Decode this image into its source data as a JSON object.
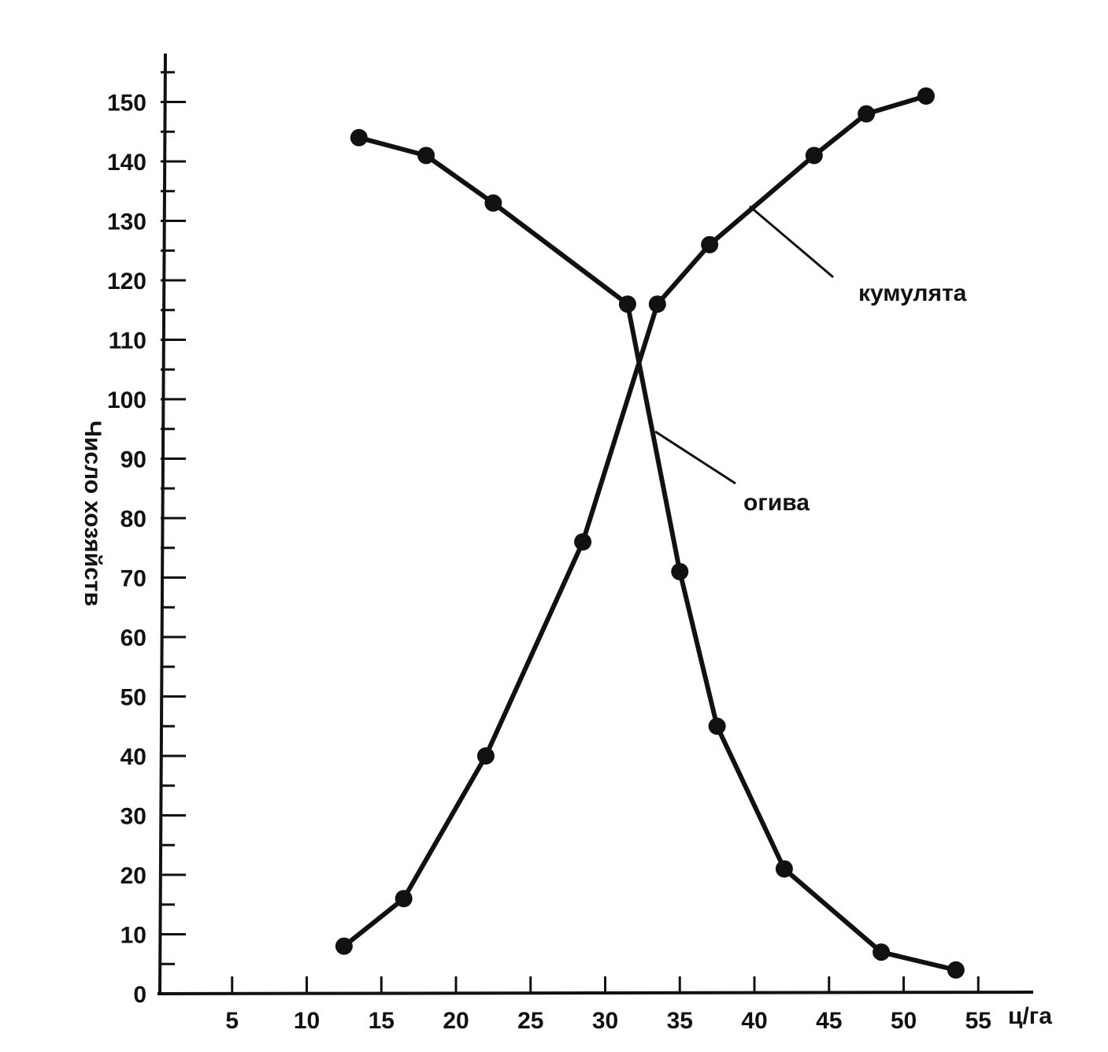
{
  "chart_data": {
    "type": "line",
    "xlabel": "ц/га",
    "ylabel": "Число хозяйств",
    "xlim": [
      0,
      57
    ],
    "ylim": [
      0,
      155
    ],
    "x_ticks": [
      5,
      10,
      15,
      20,
      25,
      30,
      35,
      40,
      45,
      50,
      55
    ],
    "y_ticks": [
      0,
      10,
      20,
      30,
      40,
      50,
      60,
      70,
      80,
      90,
      100,
      110,
      120,
      130,
      140,
      150
    ],
    "series": [
      {
        "name": "кумулята",
        "points": [
          {
            "x": 12.5,
            "y": 8
          },
          {
            "x": 16.5,
            "y": 16
          },
          {
            "x": 22,
            "y": 40
          },
          {
            "x": 28.5,
            "y": 76
          },
          {
            "x": 33.5,
            "y": 116
          },
          {
            "x": 37,
            "y": 126
          },
          {
            "x": 44,
            "y": 141
          },
          {
            "x": 47.5,
            "y": 148
          },
          {
            "x": 51.5,
            "y": 151
          }
        ]
      },
      {
        "name": "огива",
        "points": [
          {
            "x": 13.5,
            "y": 144
          },
          {
            "x": 18,
            "y": 141
          },
          {
            "x": 22.5,
            "y": 133
          },
          {
            "x": 31.5,
            "y": 116
          },
          {
            "x": 35,
            "y": 71
          },
          {
            "x": 37.5,
            "y": 45
          },
          {
            "x": 42,
            "y": 21
          },
          {
            "x": 48.5,
            "y": 7
          },
          {
            "x": 53.5,
            "y": 4
          }
        ]
      }
    ],
    "annotations": [
      {
        "text": "кумулята",
        "target_series": "кумулята"
      },
      {
        "text": "огива",
        "target_series": "огива"
      }
    ],
    "grid": false,
    "legend": "none"
  }
}
